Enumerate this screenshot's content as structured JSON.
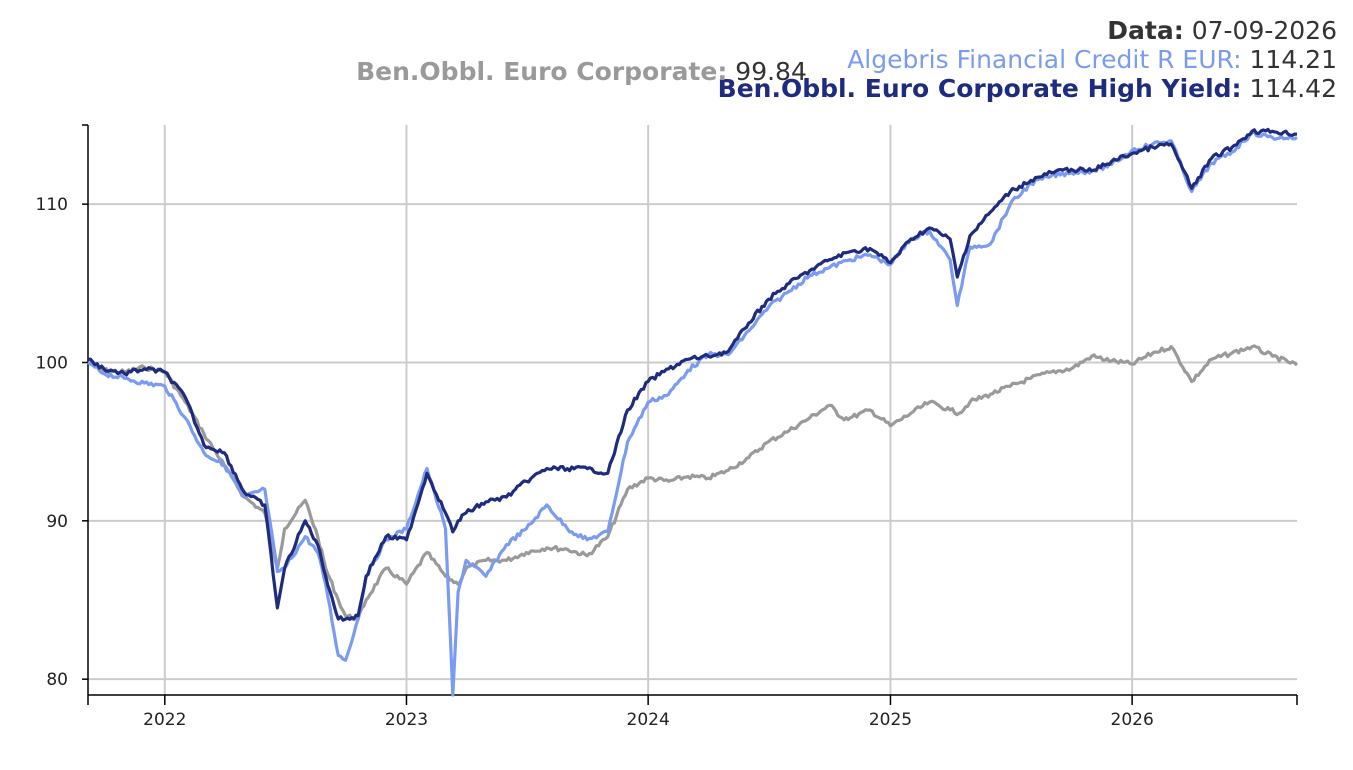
{
  "header": {
    "date_label": "Data:",
    "date_value": "07-09-2026",
    "series": [
      {
        "label": "Algebris Financial Credit R EUR:",
        "value": "114.21",
        "color": "#7b9bf0"
      },
      {
        "label": "Ben.Obbl. Euro Corporate High Yield:",
        "value": "114.42",
        "color": "#1f2c7e"
      },
      {
        "label": "Ben.Obbl. Euro Corporate:",
        "value": "99.84",
        "color": "#9a9a9a"
      }
    ]
  },
  "chart_data": {
    "type": "line",
    "title": "",
    "xlabel": "",
    "ylabel": "",
    "ylim": [
      79,
      115
    ],
    "xlim": [
      "2021-09-07",
      "2026-09-07"
    ],
    "yticks": [
      80,
      90,
      100,
      110
    ],
    "xticks": [
      {
        "label": "2022",
        "date": "2022-01-01"
      },
      {
        "label": "2023",
        "date": "2023-01-01"
      },
      {
        "label": "2024",
        "date": "2024-01-01"
      },
      {
        "label": "2025",
        "date": "2025-01-01"
      },
      {
        "label": "2026",
        "date": "2026-01-01"
      }
    ],
    "grid": true,
    "series": [
      {
        "name": "Ben.Obbl. Euro Corporate",
        "color": "#9a9a9a",
        "points": [
          [
            "2021-09-07",
            100.0
          ],
          [
            "2021-10-01",
            99.5
          ],
          [
            "2021-11-01",
            99.4
          ],
          [
            "2021-12-01",
            99.7
          ],
          [
            "2022-01-01",
            99.4
          ],
          [
            "2022-02-01",
            97.5
          ],
          [
            "2022-03-01",
            95.5
          ],
          [
            "2022-04-01",
            93.5
          ],
          [
            "2022-05-01",
            91.5
          ],
          [
            "2022-06-01",
            90.5
          ],
          [
            "2022-06-20",
            87.0
          ],
          [
            "2022-07-01",
            89.5
          ],
          [
            "2022-08-01",
            91.3
          ],
          [
            "2022-08-20",
            89.0
          ],
          [
            "2022-09-01",
            87.0
          ],
          [
            "2022-09-20",
            85.0
          ],
          [
            "2022-10-01",
            84.0
          ],
          [
            "2022-10-20",
            83.8
          ],
          [
            "2022-11-01",
            85.0
          ],
          [
            "2022-12-01",
            87.0
          ],
          [
            "2023-01-01",
            86.0
          ],
          [
            "2023-02-01",
            88.0
          ],
          [
            "2023-03-01",
            86.5
          ],
          [
            "2023-03-20",
            86.0
          ],
          [
            "2023-04-01",
            87.0
          ],
          [
            "2023-05-01",
            87.5
          ],
          [
            "2023-06-01",
            87.5
          ],
          [
            "2023-07-01",
            88.0
          ],
          [
            "2023-08-01",
            88.3
          ],
          [
            "2023-09-01",
            88.2
          ],
          [
            "2023-10-01",
            87.8
          ],
          [
            "2023-11-01",
            89.0
          ],
          [
            "2023-12-01",
            92.0
          ],
          [
            "2024-01-01",
            92.7
          ],
          [
            "2024-02-01",
            92.5
          ],
          [
            "2024-03-01",
            92.8
          ],
          [
            "2024-04-01",
            92.7
          ],
          [
            "2024-05-01",
            93.2
          ],
          [
            "2024-06-01",
            94.0
          ],
          [
            "2024-07-01",
            95.0
          ],
          [
            "2024-08-01",
            95.7
          ],
          [
            "2024-09-01",
            96.5
          ],
          [
            "2024-10-01",
            97.3
          ],
          [
            "2024-10-20",
            96.5
          ],
          [
            "2024-11-01",
            96.5
          ],
          [
            "2024-12-01",
            97.0
          ],
          [
            "2025-01-01",
            96.0
          ],
          [
            "2025-02-01",
            96.8
          ],
          [
            "2025-03-01",
            97.5
          ],
          [
            "2025-04-01",
            97.0
          ],
          [
            "2025-04-15",
            96.8
          ],
          [
            "2025-05-01",
            97.5
          ],
          [
            "2025-06-01",
            98.0
          ],
          [
            "2025-07-01",
            98.5
          ],
          [
            "2025-08-01",
            99.0
          ],
          [
            "2025-09-01",
            99.4
          ],
          [
            "2025-10-01",
            99.6
          ],
          [
            "2025-11-01",
            100.4
          ],
          [
            "2025-12-01",
            100.1
          ],
          [
            "2026-01-01",
            99.9
          ],
          [
            "2026-02-01",
            100.6
          ],
          [
            "2026-03-01",
            101.0
          ],
          [
            "2026-04-01",
            98.8
          ],
          [
            "2026-05-01",
            100.2
          ],
          [
            "2026-06-01",
            100.6
          ],
          [
            "2026-07-01",
            101.0
          ],
          [
            "2026-08-01",
            100.4
          ],
          [
            "2026-09-07",
            99.84
          ]
        ]
      },
      {
        "name": "Algebris Financial Credit R EUR",
        "color": "#7b9bf0",
        "points": [
          [
            "2021-09-07",
            100.0
          ],
          [
            "2021-10-01",
            99.3
          ],
          [
            "2021-11-01",
            99.0
          ],
          [
            "2021-12-01",
            98.7
          ],
          [
            "2022-01-01",
            98.5
          ],
          [
            "2022-02-01",
            96.5
          ],
          [
            "2022-03-01",
            94.3
          ],
          [
            "2022-04-01",
            93.5
          ],
          [
            "2022-05-01",
            91.5
          ],
          [
            "2022-06-01",
            92.0
          ],
          [
            "2022-06-20",
            86.8
          ],
          [
            "2022-07-01",
            87.0
          ],
          [
            "2022-08-01",
            89.0
          ],
          [
            "2022-08-20",
            88.0
          ],
          [
            "2022-09-01",
            86.0
          ],
          [
            "2022-09-20",
            81.5
          ],
          [
            "2022-10-01",
            81.2
          ],
          [
            "2022-10-20",
            83.8
          ],
          [
            "2022-11-01",
            86.5
          ],
          [
            "2022-12-01",
            88.8
          ],
          [
            "2023-01-01",
            89.5
          ],
          [
            "2023-02-01",
            93.3
          ],
          [
            "2023-03-01",
            89.5
          ],
          [
            "2023-03-12",
            79.0
          ],
          [
            "2023-03-20",
            85.5
          ],
          [
            "2023-04-01",
            87.5
          ],
          [
            "2023-05-01",
            86.5
          ],
          [
            "2023-06-01",
            88.5
          ],
          [
            "2023-07-01",
            89.5
          ],
          [
            "2023-08-01",
            91.0
          ],
          [
            "2023-09-01",
            89.5
          ],
          [
            "2023-10-01",
            88.8
          ],
          [
            "2023-11-01",
            89.3
          ],
          [
            "2023-12-01",
            95.0
          ],
          [
            "2024-01-01",
            97.5
          ],
          [
            "2024-02-01",
            98.0
          ],
          [
            "2024-03-01",
            99.5
          ],
          [
            "2024-04-01",
            100.5
          ],
          [
            "2024-05-01",
            100.5
          ],
          [
            "2024-06-01",
            102.0
          ],
          [
            "2024-07-01",
            103.5
          ],
          [
            "2024-08-01",
            104.5
          ],
          [
            "2024-09-01",
            105.5
          ],
          [
            "2024-10-01",
            106.0
          ],
          [
            "2024-11-01",
            106.5
          ],
          [
            "2024-12-01",
            106.8
          ],
          [
            "2025-01-01",
            106.2
          ],
          [
            "2025-02-01",
            107.8
          ],
          [
            "2025-03-01",
            108.3
          ],
          [
            "2025-04-01",
            106.5
          ],
          [
            "2025-04-12",
            103.6
          ],
          [
            "2025-05-01",
            107.3
          ],
          [
            "2025-06-01",
            107.5
          ],
          [
            "2025-07-01",
            110.0
          ],
          [
            "2025-08-01",
            111.3
          ],
          [
            "2025-09-01",
            111.8
          ],
          [
            "2025-10-01",
            112.0
          ],
          [
            "2025-11-01",
            112.1
          ],
          [
            "2025-12-01",
            112.5
          ],
          [
            "2026-01-01",
            113.4
          ],
          [
            "2026-02-01",
            113.8
          ],
          [
            "2026-03-01",
            114.0
          ],
          [
            "2026-04-01",
            110.8
          ],
          [
            "2026-05-01",
            112.6
          ],
          [
            "2026-06-01",
            113.3
          ],
          [
            "2026-07-01",
            114.5
          ],
          [
            "2026-08-01",
            114.2
          ],
          [
            "2026-09-07",
            114.21
          ]
        ]
      },
      {
        "name": "Ben.Obbl. Euro Corporate High Yield",
        "color": "#1f2c7e",
        "points": [
          [
            "2021-09-07",
            100.2
          ],
          [
            "2021-10-01",
            99.6
          ],
          [
            "2021-11-01",
            99.3
          ],
          [
            "2021-12-01",
            99.6
          ],
          [
            "2022-01-01",
            99.4
          ],
          [
            "2022-02-01",
            97.8
          ],
          [
            "2022-03-01",
            94.8
          ],
          [
            "2022-04-01",
            94.3
          ],
          [
            "2022-05-01",
            91.8
          ],
          [
            "2022-06-01",
            91.0
          ],
          [
            "2022-06-20",
            84.5
          ],
          [
            "2022-07-01",
            87.0
          ],
          [
            "2022-08-01",
            90.0
          ],
          [
            "2022-08-20",
            88.5
          ],
          [
            "2022-09-01",
            86.5
          ],
          [
            "2022-09-20",
            83.8
          ],
          [
            "2022-10-01",
            83.8
          ],
          [
            "2022-10-20",
            84.0
          ],
          [
            "2022-11-01",
            86.5
          ],
          [
            "2022-12-01",
            89.0
          ],
          [
            "2023-01-01",
            88.8
          ],
          [
            "2023-02-01",
            93.0
          ],
          [
            "2023-03-01",
            90.5
          ],
          [
            "2023-03-12",
            89.3
          ],
          [
            "2023-03-20",
            90.0
          ],
          [
            "2023-04-01",
            90.5
          ],
          [
            "2023-05-01",
            91.2
          ],
          [
            "2023-06-01",
            91.5
          ],
          [
            "2023-07-01",
            92.5
          ],
          [
            "2023-08-01",
            93.3
          ],
          [
            "2023-09-01",
            93.3
          ],
          [
            "2023-10-01",
            93.3
          ],
          [
            "2023-11-01",
            93.0
          ],
          [
            "2023-12-01",
            97.0
          ],
          [
            "2024-01-01",
            98.8
          ],
          [
            "2024-02-01",
            99.6
          ],
          [
            "2024-03-01",
            100.2
          ],
          [
            "2024-04-01",
            100.4
          ],
          [
            "2024-05-01",
            100.7
          ],
          [
            "2024-06-01",
            102.5
          ],
          [
            "2024-07-01",
            104.0
          ],
          [
            "2024-08-01",
            105.0
          ],
          [
            "2024-09-01",
            105.8
          ],
          [
            "2024-10-01",
            106.5
          ],
          [
            "2024-11-01",
            107.0
          ],
          [
            "2024-12-01",
            107.2
          ],
          [
            "2025-01-01",
            106.3
          ],
          [
            "2025-02-01",
            107.8
          ],
          [
            "2025-03-01",
            108.5
          ],
          [
            "2025-04-01",
            107.8
          ],
          [
            "2025-04-12",
            105.4
          ],
          [
            "2025-05-01",
            108.0
          ],
          [
            "2025-06-01",
            109.5
          ],
          [
            "2025-07-01",
            110.8
          ],
          [
            "2025-08-01",
            111.5
          ],
          [
            "2025-09-01",
            112.0
          ],
          [
            "2025-10-01",
            112.2
          ],
          [
            "2025-11-01",
            112.1
          ],
          [
            "2025-12-01",
            112.7
          ],
          [
            "2026-01-01",
            113.2
          ],
          [
            "2026-02-01",
            113.6
          ],
          [
            "2026-03-01",
            113.8
          ],
          [
            "2026-04-01",
            111.0
          ],
          [
            "2026-05-01",
            112.9
          ],
          [
            "2026-06-01",
            113.6
          ],
          [
            "2026-07-01",
            114.6
          ],
          [
            "2026-08-01",
            114.6
          ],
          [
            "2026-09-07",
            114.42
          ]
        ]
      }
    ]
  }
}
